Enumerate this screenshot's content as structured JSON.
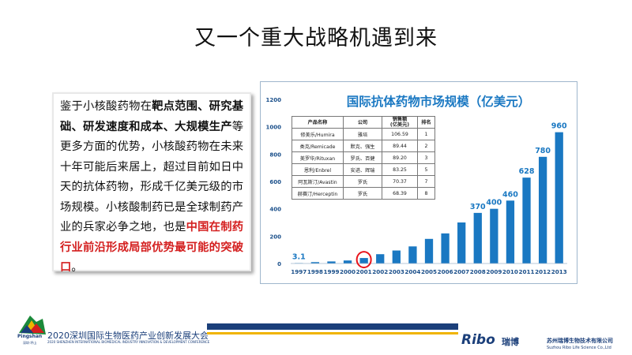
{
  "slide": {
    "title": "又一个重大战略机遇到来"
  },
  "text": {
    "p1": "鉴于小核酸药物在",
    "b1": "靶点范围、研究基础、研发速度和成本、大规模生产",
    "p2": "等更多方面的优势，小核酸药物在未来十年可能后来居上，超过目前如日中天的抗体药物，形成千亿美元级的市场规模。小核酸制药已是全球制药产业的兵家必争之地，也是",
    "red": "中国在制药行业前沿形成局部优势最可能的突破口",
    "end": "。"
  },
  "table": {
    "headers": [
      "产品名称",
      "公司",
      "销售额\n(亿美元)",
      "排名"
    ],
    "rows": [
      [
        "修美乐/Humira",
        "雅培",
        "106.59",
        "1"
      ],
      [
        "类克/Remicade",
        "默克、强生",
        "89.44",
        "2"
      ],
      [
        "美罗华/Rituxan",
        "罗氏、百健",
        "89.20",
        "3"
      ],
      [
        "恩利/Enbrel",
        "安进、辉瑞",
        "83.25",
        "5"
      ],
      [
        "阿瓦斯汀/Avastin",
        "罗氏",
        "70.37",
        "7"
      ],
      [
        "赫赛汀/Herceptin",
        "罗氏",
        "68.39",
        "8"
      ]
    ]
  },
  "footer": {
    "conference": "2020深圳国际生物医药产业创新发展大会",
    "conference_en": "2020 SHENZHEN INTERNATIONAL BIOMEDICAL INDUSTRY INNOVATION & DEVELOPMENT CONFERENCE",
    "pingshan": "Pingshan",
    "pingshan_cn": "深圳·坪山",
    "ribo": "Ribo",
    "ribo_cn": "瑞博",
    "company_cn": "苏州瑞博生物技术有限公司",
    "company_en": "Suzhou Ribo Life Science Co.,Ltd"
  },
  "colors": {
    "bar": "#1a78c2",
    "title_blue": "#1a78c2",
    "label_red": "#d41f1f",
    "highlight_circle": "#e8141b"
  },
  "chart_data": {
    "type": "bar",
    "title": "国际抗体药物市场规模（亿美元）",
    "categories": [
      "1997",
      "1998",
      "1999",
      "2000",
      "2001",
      "2002",
      "2003",
      "2004",
      "2005",
      "2006",
      "2007",
      "2008",
      "2009",
      "2010",
      "2011",
      "2012",
      "2013"
    ],
    "values": [
      3.1,
      10,
      15,
      22,
      40,
      68,
      95,
      125,
      180,
      220,
      300,
      370,
      400,
      460,
      628,
      780,
      960
    ],
    "value_labels": {
      "0": "3.1",
      "11": "370",
      "12": "400",
      "13": "460",
      "14": "628",
      "15": "780",
      "16": "960"
    },
    "ylim": [
      0,
      1200
    ],
    "yticks": [
      0,
      200,
      400,
      600,
      800,
      1000,
      1200
    ],
    "highlight_index": 4,
    "grid": false
  }
}
